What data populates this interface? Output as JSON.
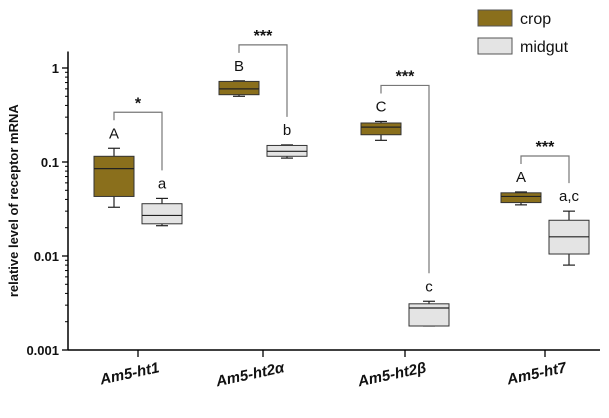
{
  "chart_data": {
    "type": "box",
    "ylabel": "relative level of receptor mRNA",
    "yscale": "log",
    "ylim": [
      0.001,
      1.5
    ],
    "y_ticks": [
      {
        "value": 0.001,
        "label": "0.001"
      },
      {
        "value": 0.01,
        "label": "0.01"
      },
      {
        "value": 0.1,
        "label": "0.1"
      },
      {
        "value": 1,
        "label": "1"
      }
    ],
    "categories": [
      "Am5-ht1",
      "Am5-ht2α",
      "Am5-ht2β",
      "Am5-ht7"
    ],
    "series": [
      {
        "name": "crop",
        "color": "#8a6f1c",
        "boxes": [
          {
            "min": 0.033,
            "q1": 0.043,
            "median": 0.085,
            "q3": 0.115,
            "max": 0.14,
            "letter": "A"
          },
          {
            "min": 0.5,
            "q1": 0.52,
            "median": 0.6,
            "q3": 0.72,
            "max": 0.73,
            "letter": "B"
          },
          {
            "min": 0.17,
            "q1": 0.195,
            "median": 0.235,
            "q3": 0.26,
            "max": 0.27,
            "letter": "C"
          },
          {
            "min": 0.035,
            "q1": 0.037,
            "median": 0.043,
            "q3": 0.047,
            "max": 0.048,
            "letter": "A"
          }
        ]
      },
      {
        "name": "midgut",
        "color": "#e4e4e4",
        "boxes": [
          {
            "min": 0.021,
            "q1": 0.022,
            "median": 0.027,
            "q3": 0.036,
            "max": 0.041,
            "letter": "a"
          },
          {
            "min": 0.11,
            "q1": 0.115,
            "median": 0.13,
            "q3": 0.15,
            "max": 0.152,
            "letter": "b"
          },
          {
            "min": 0.0018,
            "q1": 0.0018,
            "median": 0.0028,
            "q3": 0.0031,
            "max": 0.0033,
            "letter": "c"
          },
          {
            "min": 0.008,
            "q1": 0.0105,
            "median": 0.016,
            "q3": 0.024,
            "max": 0.03,
            "letter": "a,c"
          }
        ]
      }
    ],
    "significance": [
      "*",
      "***",
      "***",
      "***"
    ],
    "legend": {
      "position": "top-right"
    }
  }
}
